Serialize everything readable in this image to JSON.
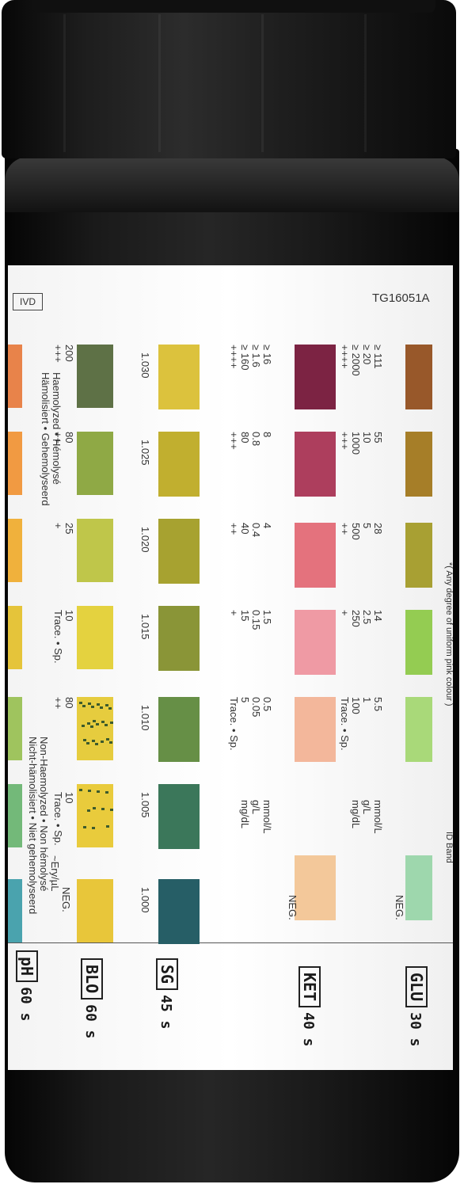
{
  "label": {
    "ivd": "IVD",
    "code": "TG16051A",
    "footnote": "*( Any degree of uniform pink colour )",
    "id_band": "ID Band"
  },
  "tests": {
    "ph": {
      "tag": "pH",
      "time": "60 s",
      "swatches": [
        "#4aa3ae",
        "#73b979",
        "#9fc45e",
        "#e5c43a",
        "#f0b13c",
        "#f19a42",
        "#e8834a"
      ]
    },
    "blo": {
      "tag": "BLO",
      "time": "60 s",
      "header1": "Non-Haemolyzed • Non hémolysé",
      "header2": "Nicht-hämolisiert • Niet gehemolyseerd",
      "header3": "Haemolyzed • Hémolysé",
      "header4": "Hämolisiert • Gehemolyseerd",
      "unit": "~Ery/µL",
      "neg": "NEG.",
      "levels": [
        {
          "v": "10",
          "s": "Trace. • Sp."
        },
        {
          "v": "80",
          "s": "++"
        },
        {
          "v": "10",
          "s": "Trace. • Sp."
        },
        {
          "v": "25",
          "s": "+"
        },
        {
          "v": "80",
          "s": "++"
        },
        {
          "v": "200",
          "s": "+++"
        }
      ],
      "swatches": [
        "#e8c63a",
        "#e9cb3c",
        "#e6cc3e",
        "#e4d23f",
        "#bfc64a",
        "#8fa945",
        "#5e7146"
      ]
    },
    "sg": {
      "tag": "SG",
      "time": "45 s",
      "values": [
        "1.000",
        "1.005",
        "1.010",
        "1.015",
        "1.020",
        "1.025",
        "1.030"
      ],
      "swatches": [
        "#265e66",
        "#3b775a",
        "#668f46",
        "#8a9537",
        "#a7a230",
        "#c1af2f",
        "#dcc23d"
      ]
    },
    "ket": {
      "tag": "KET",
      "time": "40 s",
      "units": [
        "mmol/L",
        "g/L",
        "mg/dL"
      ],
      "neg": "NEG.",
      "levels": [
        {
          "a": "0.5",
          "b": "0.05",
          "c": "5",
          "s": "Trace. • Sp."
        },
        {
          "a": "1.5",
          "b": "0.15",
          "c": "15",
          "s": "+"
        },
        {
          "a": "4",
          "b": "0.4",
          "c": "40",
          "s": "++"
        },
        {
          "a": "8",
          "b": "0.8",
          "c": "80",
          "s": "+++"
        },
        {
          "a": "≥ 16",
          "b": "≥ 1.6",
          "c": "≥ 160",
          "s": "++++"
        }
      ],
      "swatches": [
        "#f3c89a",
        "#f3b79b",
        "#ef9aa4",
        "#e4727d",
        "#ad3e5d",
        "#7c2343"
      ]
    },
    "glu": {
      "tag": "GLU",
      "time": "30 s",
      "units": [
        "mmol/L",
        "g/L",
        "mg/dL"
      ],
      "neg": "NEG.",
      "levels": [
        {
          "a": "5.5",
          "b": "1",
          "c": "100",
          "s": "Trace. • Sp."
        },
        {
          "a": "14",
          "b": "2.5",
          "c": "250",
          "s": "+"
        },
        {
          "a": "28",
          "b": "5",
          "c": "500",
          "s": "++"
        },
        {
          "a": "55",
          "b": "10",
          "c": "1000",
          "s": "+++"
        },
        {
          "a": "≥ 111",
          "b": "≥ 20",
          "c": "≥ 2000",
          "s": "++++"
        }
      ],
      "swatches": [
        "#9ed7ad",
        "#a9d979",
        "#94cc52",
        "#a8a033",
        "#a67e28",
        "#98582a"
      ]
    }
  }
}
